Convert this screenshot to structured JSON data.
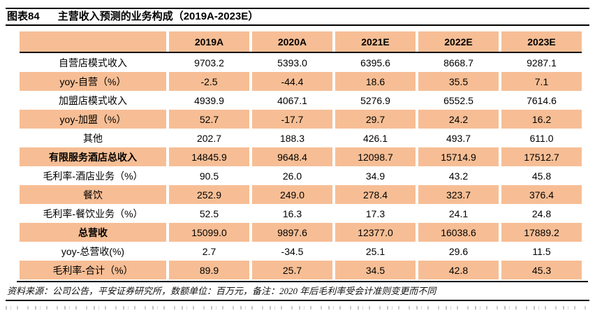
{
  "figure": {
    "label": "图表84",
    "title": "主营收入预测的业务构成（2019A-2023E）"
  },
  "table": {
    "columns": [
      "",
      "2019A",
      "2020A",
      "2021E",
      "2022E",
      "2023E"
    ],
    "rows": [
      {
        "label": "自营店模式收入",
        "values": [
          "9703.2",
          "5393.0",
          "6395.6",
          "8668.7",
          "9287.1"
        ],
        "emphasis": false
      },
      {
        "label": "yoy-自营（%）",
        "values": [
          "-2.5",
          "-44.4",
          "18.6",
          "35.5",
          "7.1"
        ],
        "emphasis": false
      },
      {
        "label": "加盟店模式收入",
        "values": [
          "4939.9",
          "4067.1",
          "5276.9",
          "6552.5",
          "7614.6"
        ],
        "emphasis": false
      },
      {
        "label": "yoy-加盟（%）",
        "values": [
          "52.7",
          "-17.7",
          "29.7",
          "24.2",
          "16.2"
        ],
        "emphasis": false
      },
      {
        "label": "其他",
        "values": [
          "202.7",
          "188.3",
          "426.1",
          "493.7",
          "611.0"
        ],
        "emphasis": false
      },
      {
        "label": "有限服务酒店总收入",
        "values": [
          "14845.9",
          "9648.4",
          "12098.7",
          "15714.9",
          "17512.7"
        ],
        "emphasis": true
      },
      {
        "label": "毛利率-酒店业务（%）",
        "values": [
          "90.5",
          "26.0",
          "34.9",
          "43.2",
          "45.8"
        ],
        "emphasis": false
      },
      {
        "label": "餐饮",
        "values": [
          "252.9",
          "249.0",
          "278.4",
          "323.7",
          "376.4"
        ],
        "emphasis": false
      },
      {
        "label": "毛利率-餐饮业务（%）",
        "values": [
          "52.5",
          "16.3",
          "17.3",
          "24.1",
          "24.8"
        ],
        "emphasis": false
      },
      {
        "label": "总营收",
        "values": [
          "15099.0",
          "9897.6",
          "12377.0",
          "16038.6",
          "17889.2"
        ],
        "emphasis": true
      },
      {
        "label": "yoy-总营收(%)",
        "values": [
          "2.7",
          "-34.5",
          "25.1",
          "29.6",
          "11.5"
        ],
        "emphasis": false
      },
      {
        "label": "毛利率-合计（%）",
        "values": [
          "89.9",
          "25.7",
          "34.5",
          "42.8",
          "45.3"
        ],
        "emphasis": false
      }
    ]
  },
  "footer": {
    "source_note": "资料来源：公司公告，平安证券研究所，数额单位：百万元，备注：2020 年后毛利率受会计准则变更而不同"
  },
  "colors": {
    "row_shading": "#F7BE95",
    "rule": "#000000"
  }
}
